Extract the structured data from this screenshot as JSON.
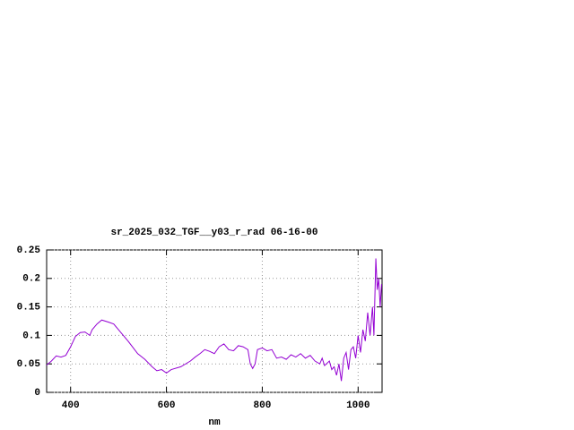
{
  "chart_data": {
    "type": "line",
    "title": "sr_2025_032_TGF__y03_r_rad 06-16-00",
    "x_label": "nm",
    "x": [
      350,
      360,
      370,
      380,
      390,
      400,
      410,
      420,
      430,
      440,
      445,
      455,
      465,
      480,
      490,
      500,
      520,
      540,
      555,
      570,
      580,
      590,
      600,
      610,
      630,
      650,
      660,
      670,
      680,
      690,
      700,
      710,
      720,
      730,
      740,
      750,
      760,
      770,
      775,
      780,
      785,
      790,
      800,
      810,
      820,
      830,
      840,
      850,
      860,
      870,
      880,
      890,
      900,
      910,
      920,
      925,
      930,
      940,
      945,
      950,
      955,
      960,
      965,
      970,
      975,
      980,
      985,
      990,
      995,
      1000,
      1005,
      1010,
      1015,
      1020,
      1025,
      1030,
      1033,
      1037,
      1040,
      1043,
      1046,
      1049
    ],
    "series": [
      {
        "name": "sr_2025_032_TGF__y03_r_rad",
        "color": "#9400d3",
        "values": [
          0.048,
          0.055,
          0.064,
          0.062,
          0.065,
          0.08,
          0.098,
          0.105,
          0.106,
          0.1,
          0.11,
          0.12,
          0.127,
          0.123,
          0.12,
          0.11,
          0.09,
          0.068,
          0.058,
          0.045,
          0.038,
          0.04,
          0.034,
          0.04,
          0.045,
          0.055,
          0.062,
          0.068,
          0.075,
          0.072,
          0.068,
          0.08,
          0.085,
          0.075,
          0.073,
          0.082,
          0.08,
          0.075,
          0.05,
          0.042,
          0.05,
          0.075,
          0.078,
          0.073,
          0.075,
          0.06,
          0.062,
          0.058,
          0.066,
          0.062,
          0.068,
          0.06,
          0.065,
          0.055,
          0.05,
          0.06,
          0.047,
          0.055,
          0.04,
          0.045,
          0.03,
          0.05,
          0.02,
          0.06,
          0.07,
          0.04,
          0.075,
          0.08,
          0.06,
          0.1,
          0.07,
          0.11,
          0.09,
          0.14,
          0.1,
          0.15,
          0.1,
          0.235,
          0.18,
          0.2,
          0.15,
          0.19
        ]
      }
    ],
    "xlim": [
      350,
      1050
    ],
    "ylim": [
      0,
      0.25
    ],
    "xticks": [
      400,
      600,
      800,
      1000
    ],
    "yticks": [
      0,
      0.05,
      0.1,
      0.15,
      0.2,
      0.25
    ],
    "grid": true
  }
}
